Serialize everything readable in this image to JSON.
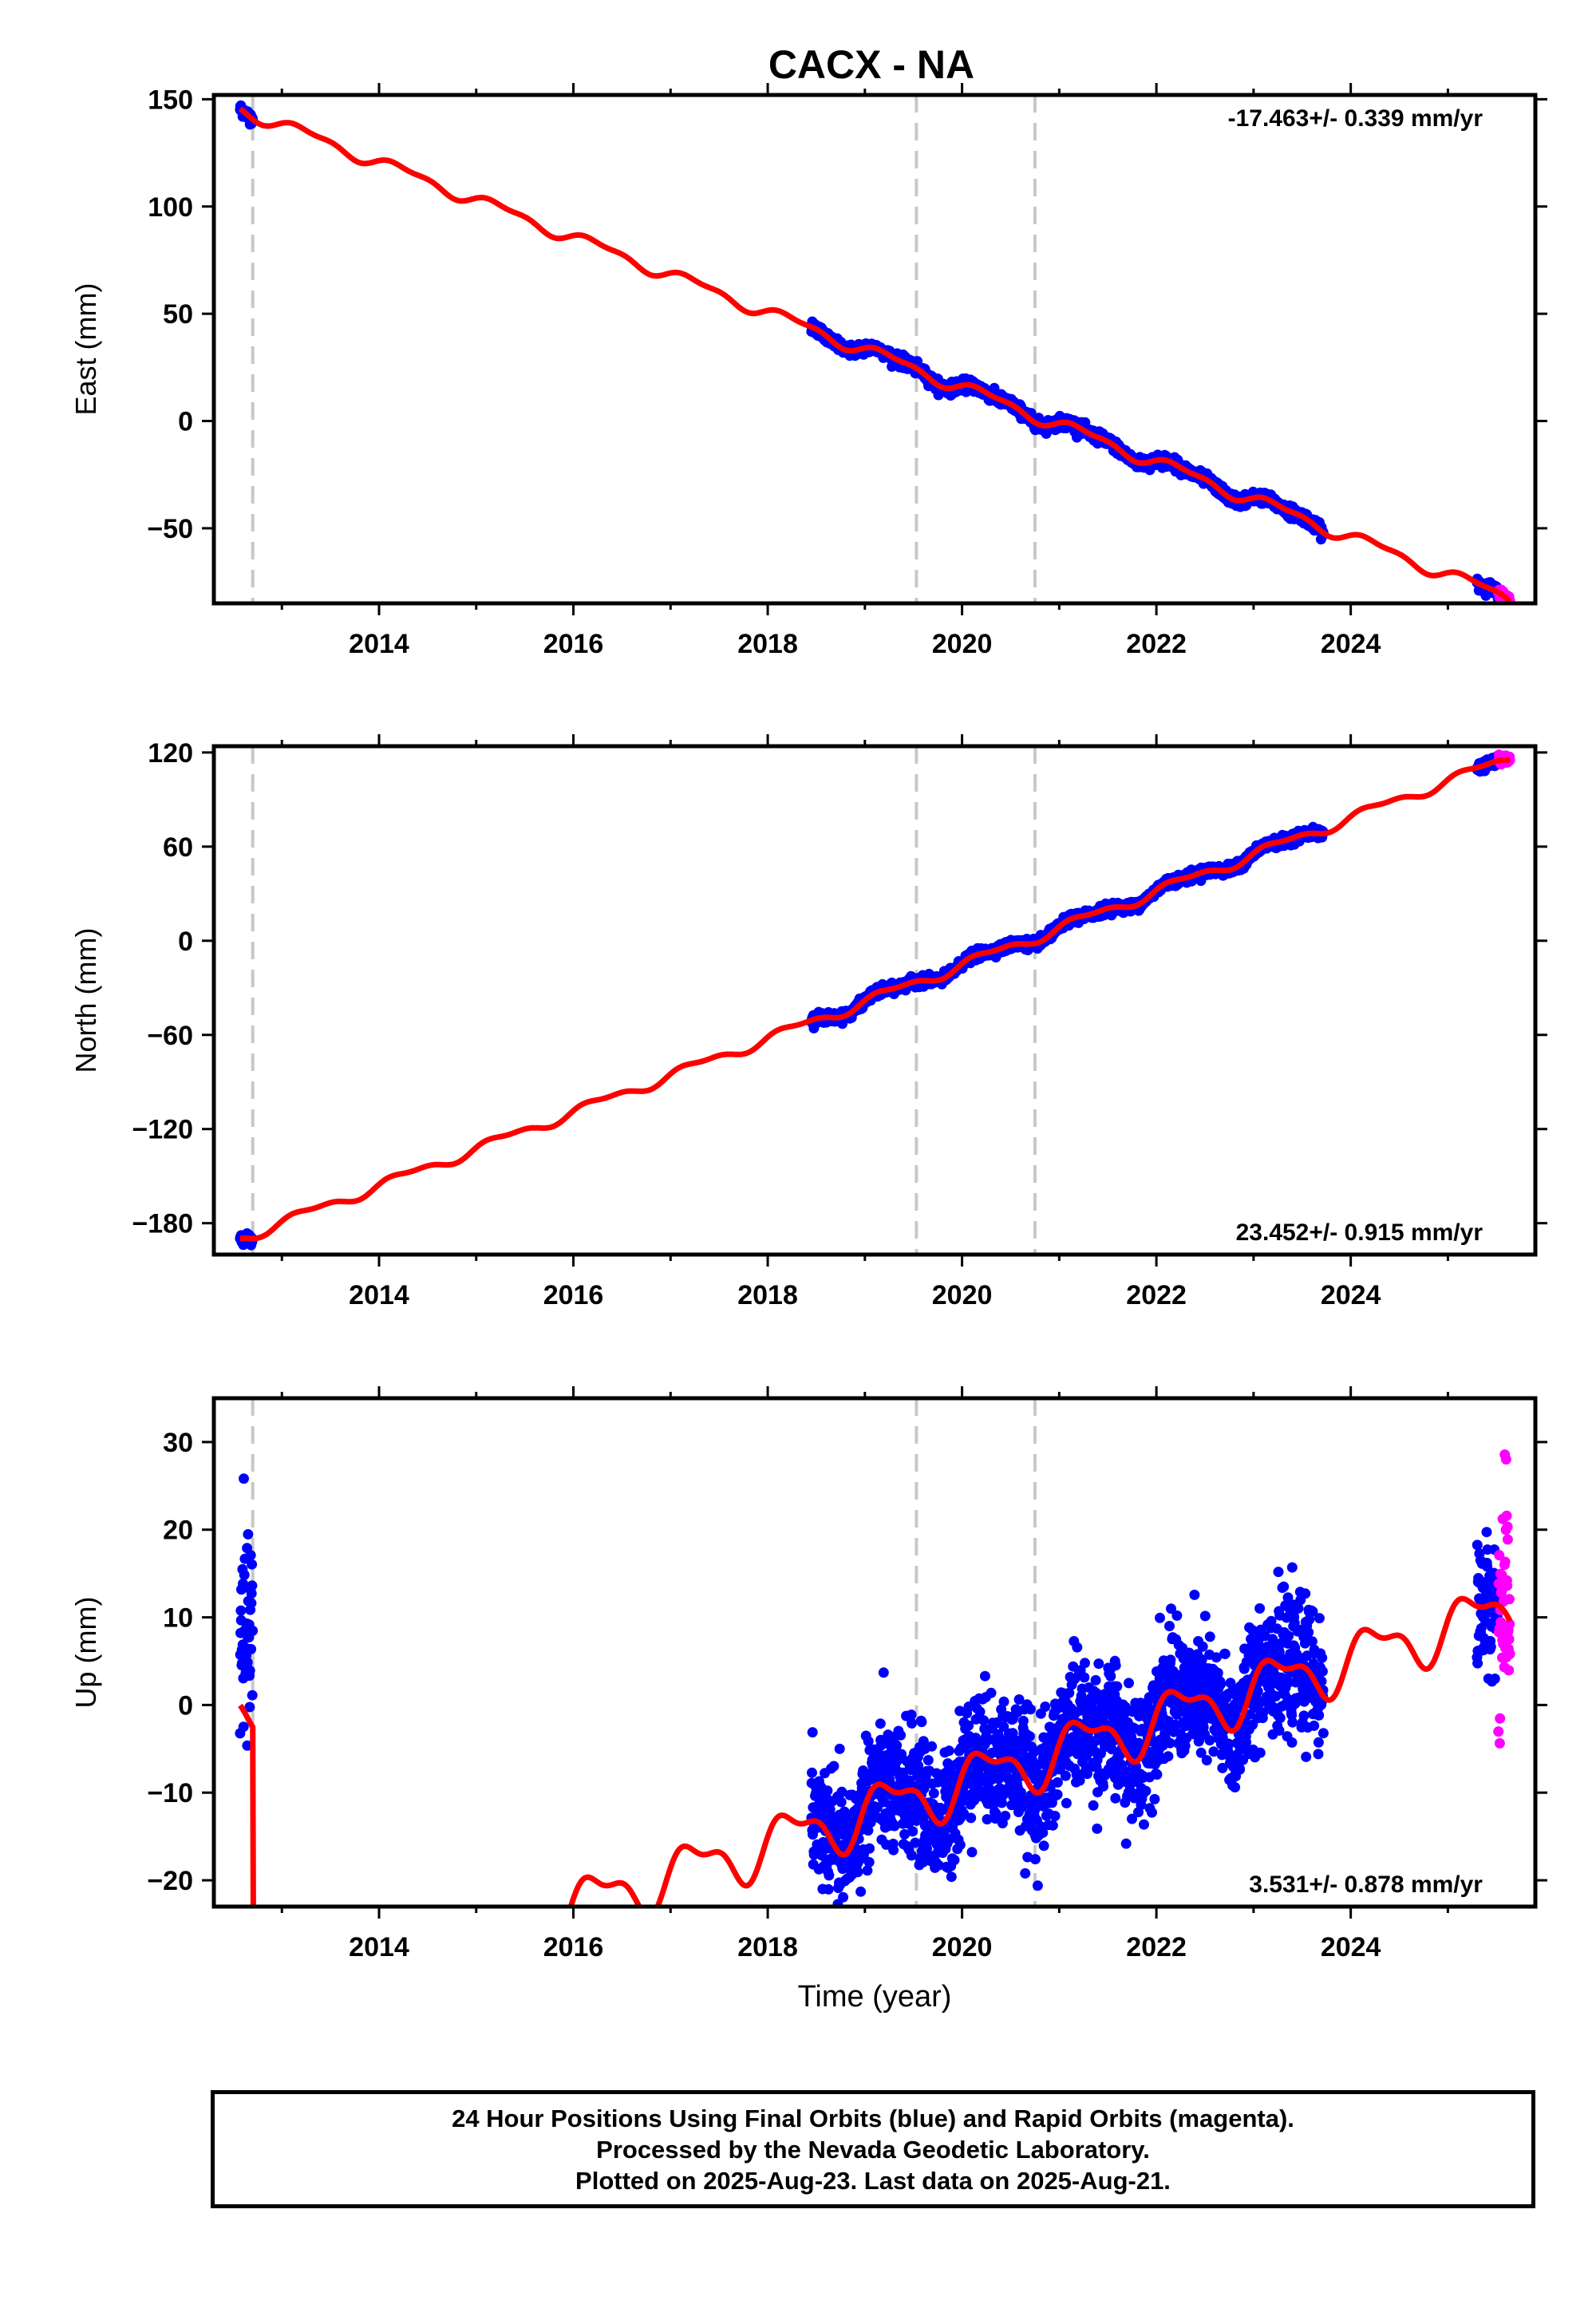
{
  "title": "CACX - NA",
  "colors": {
    "final_orbits": "#0000ff",
    "rapid_orbits": "#ff00ff",
    "model": "#ff0000",
    "event_line": "#c8c8c8",
    "frame": "#000000"
  },
  "footer": {
    "line1": "24 Hour Positions Using Final Orbits (blue) and Rapid Orbits (magenta).",
    "line2": "Processed by the Nevada Geodetic Laboratory.",
    "line3": "Plotted on 2025-Aug-23. Last data on 2025-Aug-21."
  },
  "chart_data": [
    {
      "type": "scatter",
      "component": "east",
      "ylabel": "East (mm)",
      "xlabel": "",
      "rate_text": "-17.463+/- 0.339 mm/yr",
      "rate_position": "top-right",
      "xlim": [
        2012.3,
        2025.9
      ],
      "ylim": [
        -85,
        152
      ],
      "xticks": [
        2014,
        2016,
        2018,
        2020,
        2022,
        2024
      ],
      "yticks": [
        -50,
        0,
        50,
        100,
        150
      ],
      "event_lines_x": [
        2012.7,
        2019.53,
        2020.75
      ],
      "final_segments": [
        [
          2012.57,
          2012.7
        ],
        [
          2018.45,
          2023.72
        ],
        [
          2025.3,
          2025.52
        ]
      ],
      "rapid_range": [
        2025.52,
        2025.64
      ],
      "rate": -17.463,
      "offset_y": 145,
      "annual_amp": 2.6,
      "noise_sd": 1.3,
      "grid": false
    },
    {
      "type": "scatter",
      "component": "north",
      "ylabel": "North (mm)",
      "xlabel": "",
      "rate_text": "23.452+/- 0.915 mm/yr",
      "rate_position": "bottom-right",
      "xlim": [
        2012.3,
        2025.9
      ],
      "ylim": [
        -200,
        124
      ],
      "xticks": [
        2014,
        2016,
        2018,
        2020,
        2022,
        2024
      ],
      "yticks": [
        -180,
        -120,
        -60,
        0,
        60,
        120
      ],
      "event_lines_x": [
        2012.7,
        2019.53,
        2020.75
      ],
      "final_segments": [
        [
          2012.57,
          2012.7
        ],
        [
          2018.45,
          2023.72
        ],
        [
          2025.3,
          2025.52
        ]
      ],
      "rapid_range": [
        2025.52,
        2025.64
      ],
      "rate": 23.452,
      "offset_y": -189,
      "annual_amp": 3.0,
      "noise_sd": 1.5,
      "grid": false
    },
    {
      "type": "scatter",
      "component": "up",
      "ylabel": "Up (mm)",
      "xlabel": "Time (year)",
      "rate_text": "3.531+/- 0.878 mm/yr",
      "rate_position": "bottom-right",
      "xlim": [
        2012.3,
        2025.9
      ],
      "ylim": [
        -23,
        35
      ],
      "xticks": [
        2014,
        2016,
        2018,
        2020,
        2022,
        2024
      ],
      "yticks": [
        -20,
        -10,
        0,
        10,
        20,
        30
      ],
      "event_lines_x": [
        2012.7,
        2019.53,
        2020.75
      ],
      "final_segments": [
        [
          2012.57,
          2012.7
        ],
        [
          2018.45,
          2023.72
        ],
        [
          2025.3,
          2025.52
        ]
      ],
      "rapid_range": [
        2025.52,
        2025.64
      ],
      "rate": 3.531,
      "offset_y": -35,
      "annual_amp": 2.8,
      "noise_sd": 3.6,
      "initial_offset_mm": 35,
      "grid": false
    }
  ]
}
